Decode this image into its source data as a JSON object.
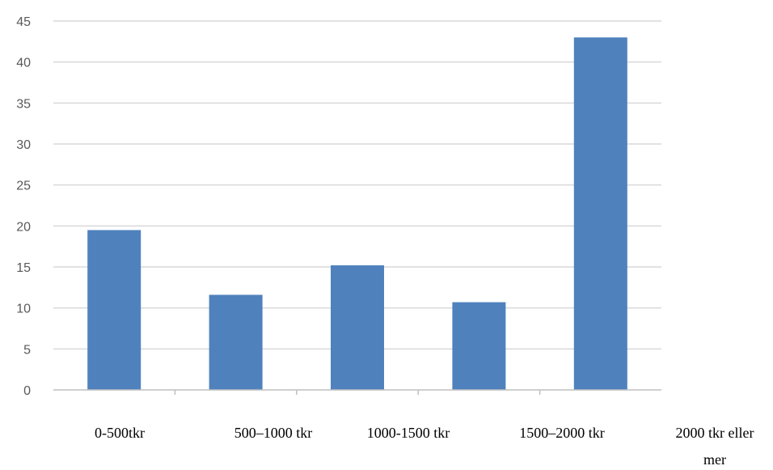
{
  "chart_data": {
    "type": "bar",
    "categories": [
      "0-500tkr",
      "500–1000 tkr",
      "1000-1500 tkr",
      "1500–2000 tkr",
      "2000 tkr eller mer"
    ],
    "category_label_lines": [
      [
        "0-500tkr"
      ],
      [
        "500–1000 tkr"
      ],
      [
        "1000-1500 tkr"
      ],
      [
        "1500–2000 tkr"
      ],
      [
        "2000 tkr eller",
        "mer"
      ]
    ],
    "values": [
      19.5,
      11.6,
      15.2,
      10.7,
      43.0
    ],
    "title": "",
    "xlabel": "",
    "ylabel": "",
    "ylim": [
      0,
      45
    ],
    "yticks": [
      "0",
      "5",
      "10",
      "15",
      "20",
      "25",
      "30",
      "35",
      "40",
      "45"
    ],
    "grid": true,
    "legend": "none",
    "colors": {
      "bar": "#4f81bd",
      "grid": "#d9d9d9",
      "axis": "#bfbfbf",
      "tick_text": "#595959",
      "category_text": "#000000"
    }
  }
}
